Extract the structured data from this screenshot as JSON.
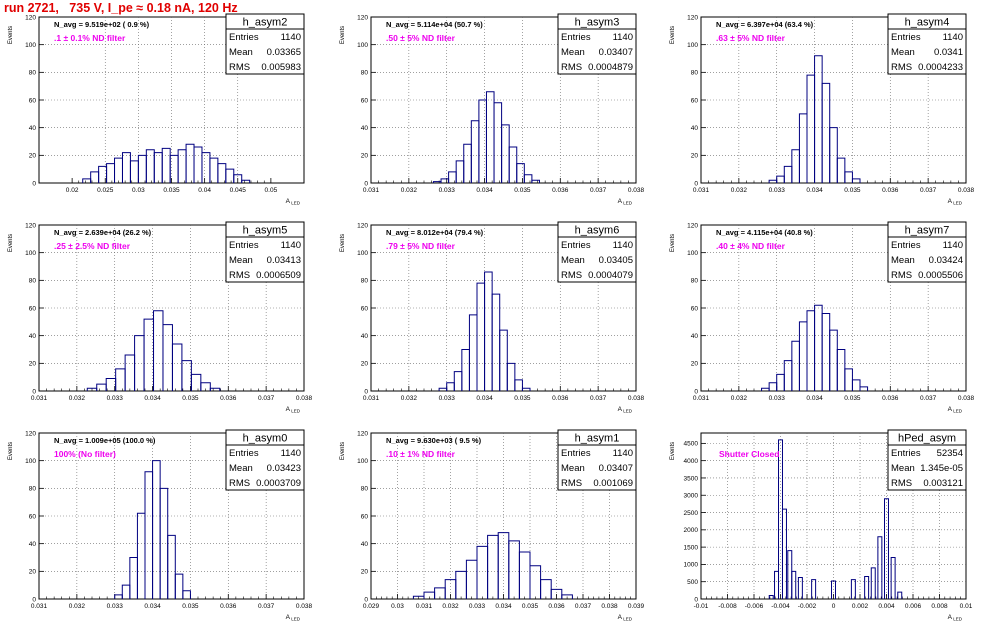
{
  "page": {
    "title": "run 2721,   735 V, I_pe ≈ 0.18 nA, 120 Hz",
    "title_color": "#e00000",
    "label_color": "#ee00ee",
    "line_color": "#000080"
  },
  "stats_labels": {
    "entries": "Entries",
    "mean": "Mean",
    "rms": "RMS"
  },
  "axis_titles": {
    "x": "A",
    "x_sub": "LED",
    "y": "Events"
  },
  "chart_data": [
    {
      "type": "histogram",
      "name": "h_asym2",
      "entries": "1140",
      "mean": "0.03365",
      "rms": "0.005983",
      "navg": "N_avg = 9.519e+02 ( 0.9 %)",
      "filter": ".1 ± 0.1% ND filter",
      "xlim": [
        0.015,
        0.055
      ],
      "ylim": [
        0,
        120
      ],
      "xticks": [
        0.02,
        0.025,
        0.03,
        0.035,
        0.04,
        0.045,
        0.05
      ],
      "xticklabels": [
        "0.02",
        "0.025",
        "0.03",
        "0.035",
        "0.04",
        "0.045",
        "0.05"
      ],
      "yticks": [
        0,
        20,
        40,
        60,
        80,
        100,
        120
      ],
      "bins": [
        [
          0.0222,
          3
        ],
        [
          0.0234,
          8
        ],
        [
          0.0246,
          12
        ],
        [
          0.0258,
          14
        ],
        [
          0.027,
          18
        ],
        [
          0.0282,
          22
        ],
        [
          0.0294,
          16
        ],
        [
          0.0306,
          20
        ],
        [
          0.0318,
          24
        ],
        [
          0.033,
          22
        ],
        [
          0.0342,
          25
        ],
        [
          0.0354,
          20
        ],
        [
          0.0366,
          24
        ],
        [
          0.0378,
          28
        ],
        [
          0.039,
          26
        ],
        [
          0.0402,
          22
        ],
        [
          0.0414,
          18
        ],
        [
          0.0426,
          14
        ],
        [
          0.0438,
          10
        ],
        [
          0.045,
          6
        ],
        [
          0.0462,
          2
        ]
      ]
    },
    {
      "type": "histogram",
      "name": "h_asym3",
      "entries": "1140",
      "mean": "0.03407",
      "rms": "0.0004879",
      "navg": "N_avg = 5.114e+04 (50.7 %)",
      "filter": ".50 ± 5% ND filter",
      "xlim": [
        0.031,
        0.038
      ],
      "ylim": [
        0,
        120
      ],
      "xticks": [
        0.031,
        0.032,
        0.033,
        0.034,
        0.035,
        0.036,
        0.037,
        0.038
      ],
      "xticklabels": [
        "0.031",
        "0.032",
        "0.033",
        "0.034",
        "0.035",
        "0.036",
        "0.037",
        "0.038"
      ],
      "yticks": [
        0,
        20,
        40,
        60,
        80,
        100,
        120
      ],
      "bins": [
        [
          0.03275,
          1
        ],
        [
          0.03295,
          3
        ],
        [
          0.03315,
          8
        ],
        [
          0.03335,
          16
        ],
        [
          0.03355,
          28
        ],
        [
          0.03375,
          45
        ],
        [
          0.03395,
          60
        ],
        [
          0.03415,
          66
        ],
        [
          0.03435,
          58
        ],
        [
          0.03455,
          42
        ],
        [
          0.03475,
          26
        ],
        [
          0.03495,
          14
        ],
        [
          0.03515,
          6
        ],
        [
          0.03535,
          2
        ]
      ]
    },
    {
      "type": "histogram",
      "name": "h_asym4",
      "entries": "1140",
      "mean": "0.0341",
      "rms": "0.0004233",
      "navg": "N_avg = 6.397e+04 (63.4 %)",
      "filter": ".63 ± 5% ND filter",
      "xlim": [
        0.031,
        0.038
      ],
      "ylim": [
        0,
        120
      ],
      "xticks": [
        0.031,
        0.032,
        0.033,
        0.034,
        0.035,
        0.036,
        0.037,
        0.038
      ],
      "xticklabels": [
        "0.031",
        "0.032",
        "0.033",
        "0.034",
        "0.035",
        "0.036",
        "0.037",
        "0.038"
      ],
      "yticks": [
        0,
        20,
        40,
        60,
        80,
        100,
        120
      ],
      "bins": [
        [
          0.0329,
          2
        ],
        [
          0.0331,
          5
        ],
        [
          0.0333,
          12
        ],
        [
          0.0335,
          24
        ],
        [
          0.0337,
          50
        ],
        [
          0.0339,
          78
        ],
        [
          0.0341,
          92
        ],
        [
          0.0343,
          72
        ],
        [
          0.0345,
          40
        ],
        [
          0.0347,
          18
        ],
        [
          0.0349,
          8
        ],
        [
          0.0351,
          3
        ]
      ]
    },
    {
      "type": "histogram",
      "name": "h_asym5",
      "entries": "1140",
      "mean": "0.03413",
      "rms": "0.0006509",
      "navg": "N_avg = 2.639e+04 (26.2 %)",
      "filter": ".25 ± 2.5% ND filter",
      "xlim": [
        0.031,
        0.038
      ],
      "ylim": [
        0,
        120
      ],
      "xticks": [
        0.031,
        0.032,
        0.033,
        0.034,
        0.035,
        0.036,
        0.037,
        0.038
      ],
      "xticklabels": [
        "0.031",
        "0.032",
        "0.033",
        "0.034",
        "0.035",
        "0.036",
        "0.037",
        "0.038"
      ],
      "yticks": [
        0,
        20,
        40,
        60,
        80,
        100,
        120
      ],
      "bins": [
        [
          0.0324,
          2
        ],
        [
          0.03265,
          5
        ],
        [
          0.0329,
          9
        ],
        [
          0.03315,
          16
        ],
        [
          0.0334,
          26
        ],
        [
          0.03365,
          40
        ],
        [
          0.0339,
          52
        ],
        [
          0.03415,
          58
        ],
        [
          0.0344,
          48
        ],
        [
          0.03465,
          34
        ],
        [
          0.0349,
          22
        ],
        [
          0.03515,
          12
        ],
        [
          0.0354,
          6
        ],
        [
          0.03565,
          2
        ]
      ]
    },
    {
      "type": "histogram",
      "name": "h_asym6",
      "entries": "1140",
      "mean": "0.03405",
      "rms": "0.0004079",
      "navg": "N_avg = 8.012e+04 (79.4 %)",
      "filter": ".79 ± 5% ND filter",
      "xlim": [
        0.031,
        0.038
      ],
      "ylim": [
        0,
        120
      ],
      "xticks": [
        0.031,
        0.032,
        0.033,
        0.034,
        0.035,
        0.036,
        0.037,
        0.038
      ],
      "xticklabels": [
        "0.031",
        "0.032",
        "0.033",
        "0.034",
        "0.035",
        "0.036",
        "0.037",
        "0.038"
      ],
      "yticks": [
        0,
        20,
        40,
        60,
        80,
        100,
        120
      ],
      "bins": [
        [
          0.0329,
          2
        ],
        [
          0.0331,
          6
        ],
        [
          0.0333,
          14
        ],
        [
          0.0335,
          30
        ],
        [
          0.0337,
          55
        ],
        [
          0.0339,
          78
        ],
        [
          0.0341,
          86
        ],
        [
          0.0343,
          70
        ],
        [
          0.0345,
          44
        ],
        [
          0.0347,
          20
        ],
        [
          0.0349,
          8
        ],
        [
          0.0351,
          2
        ]
      ]
    },
    {
      "type": "histogram",
      "name": "h_asym7",
      "entries": "1140",
      "mean": "0.03424",
      "rms": "0.0005506",
      "navg": "N_avg = 4.115e+04 (40.8 %)",
      "filter": ".40 ± 4% ND filter",
      "xlim": [
        0.031,
        0.038
      ],
      "ylim": [
        0,
        120
      ],
      "xticks": [
        0.031,
        0.032,
        0.033,
        0.034,
        0.035,
        0.036,
        0.037,
        0.038
      ],
      "xticklabels": [
        "0.031",
        "0.032",
        "0.033",
        "0.034",
        "0.035",
        "0.036",
        "0.037",
        "0.038"
      ],
      "yticks": [
        0,
        20,
        40,
        60,
        80,
        100,
        120
      ],
      "bins": [
        [
          0.0327,
          2
        ],
        [
          0.0329,
          6
        ],
        [
          0.0331,
          12
        ],
        [
          0.0333,
          22
        ],
        [
          0.0335,
          36
        ],
        [
          0.0337,
          50
        ],
        [
          0.0339,
          58
        ],
        [
          0.0341,
          62
        ],
        [
          0.0343,
          56
        ],
        [
          0.0345,
          44
        ],
        [
          0.0347,
          30
        ],
        [
          0.0349,
          16
        ],
        [
          0.0351,
          8
        ],
        [
          0.0353,
          3
        ]
      ]
    },
    {
      "type": "histogram",
      "name": "h_asym0",
      "entries": "1140",
      "mean": "0.03423",
      "rms": "0.0003709",
      "navg": "N_avg = 1.009e+05 (100.0 %)",
      "filter": "100% (No filter)",
      "xlim": [
        0.031,
        0.038
      ],
      "ylim": [
        0,
        120
      ],
      "xticks": [
        0.031,
        0.032,
        0.033,
        0.034,
        0.035,
        0.036,
        0.037,
        0.038
      ],
      "xticklabels": [
        "0.031",
        "0.032",
        "0.033",
        "0.034",
        "0.035",
        "0.036",
        "0.037",
        "0.038"
      ],
      "yticks": [
        0,
        20,
        40,
        60,
        80,
        100,
        120
      ],
      "bins": [
        [
          0.0331,
          3
        ],
        [
          0.0333,
          10
        ],
        [
          0.0335,
          30
        ],
        [
          0.0337,
          62
        ],
        [
          0.0339,
          92
        ],
        [
          0.0341,
          100
        ],
        [
          0.0343,
          80
        ],
        [
          0.0345,
          46
        ],
        [
          0.0347,
          18
        ],
        [
          0.0349,
          6
        ]
      ]
    },
    {
      "type": "histogram",
      "name": "h_asym1",
      "entries": "1140",
      "mean": "0.03407",
      "rms": "0.001069",
      "navg": "N_avg = 9.630e+03 ( 9.5 %)",
      "filter": ".10 ± 1% ND filter",
      "xlim": [
        0.029,
        0.039
      ],
      "ylim": [
        0,
        120
      ],
      "xticks": [
        0.029,
        0.03,
        0.031,
        0.032,
        0.033,
        0.034,
        0.035,
        0.036,
        0.037,
        0.038,
        0.039
      ],
      "xticklabels": [
        "0.029",
        "0.03",
        "0.031",
        "0.032",
        "0.033",
        "0.034",
        "0.035",
        "0.036",
        "0.037",
        "0.038",
        "0.039"
      ],
      "yticks": [
        0,
        20,
        40,
        60,
        80,
        100,
        120
      ],
      "bins": [
        [
          0.0308,
          2
        ],
        [
          0.0312,
          5
        ],
        [
          0.0316,
          8
        ],
        [
          0.032,
          14
        ],
        [
          0.0324,
          20
        ],
        [
          0.0328,
          28
        ],
        [
          0.0332,
          38
        ],
        [
          0.0336,
          46
        ],
        [
          0.034,
          48
        ],
        [
          0.0344,
          42
        ],
        [
          0.0348,
          34
        ],
        [
          0.0352,
          24
        ],
        [
          0.0356,
          14
        ],
        [
          0.036,
          7
        ],
        [
          0.0364,
          3
        ]
      ]
    },
    {
      "type": "histogram",
      "name": "hPed_asym",
      "entries": "52354",
      "mean": "1.345e-05",
      "rms": "0.003121",
      "navg": "",
      "filter": "Shutter Closed",
      "xlim": [
        -0.01,
        0.01
      ],
      "ylim": [
        0,
        4800
      ],
      "xticks": [
        -0.01,
        -0.008,
        -0.006,
        -0.004,
        -0.002,
        0,
        0.002,
        0.004,
        0.006,
        0.008,
        0.01
      ],
      "xticklabels": [
        "-0.01",
        "-0.008",
        "-0.006",
        "-0.004",
        "-0.002",
        "0",
        "0.002",
        "0.004",
        "0.006",
        "0.008",
        "0.01"
      ],
      "yticks": [
        0,
        500,
        1000,
        1500,
        2000,
        2500,
        3000,
        3500,
        4000,
        4500
      ],
      "bins": [
        [
          -0.0047,
          100
        ],
        [
          -0.0043,
          800
        ],
        [
          -0.004,
          4600
        ],
        [
          -0.0037,
          2600
        ],
        [
          -0.0033,
          1400
        ],
        [
          -0.003,
          800
        ],
        [
          -0.0025,
          620
        ],
        [
          -0.0015,
          560
        ],
        [
          0.0,
          520
        ],
        [
          0.0015,
          560
        ],
        [
          0.0025,
          650
        ],
        [
          0.003,
          900
        ],
        [
          0.0035,
          1800
        ],
        [
          0.004,
          2900
        ],
        [
          0.0045,
          1200
        ],
        [
          0.005,
          200
        ]
      ]
    }
  ]
}
